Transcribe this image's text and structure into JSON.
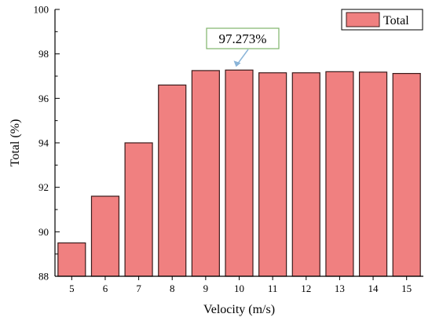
{
  "chart_data": {
    "type": "bar",
    "xlabel": "Velocity (m/s)",
    "ylabel": "Total (%)",
    "categories": [
      "5",
      "6",
      "7",
      "8",
      "9",
      "10",
      "11",
      "12",
      "13",
      "14",
      "15"
    ],
    "series": [
      {
        "name": "Total",
        "values": [
          89.5,
          91.6,
          94.0,
          96.6,
          97.25,
          97.273,
          97.15,
          97.15,
          97.2,
          97.18,
          97.12
        ]
      }
    ],
    "ylim": [
      88,
      100
    ],
    "yticks": [
      "88",
      "90",
      "92",
      "94",
      "96",
      "98",
      "100"
    ],
    "legend_position": "top-right",
    "grid": false,
    "annotation": {
      "text": "97.273%",
      "category": "10"
    },
    "colors": {
      "bar_fill": "#f08080",
      "bar_stroke": "#3a1a1a",
      "annotation_border": "#7fb36a",
      "arrow": "#8ab4d8"
    }
  }
}
